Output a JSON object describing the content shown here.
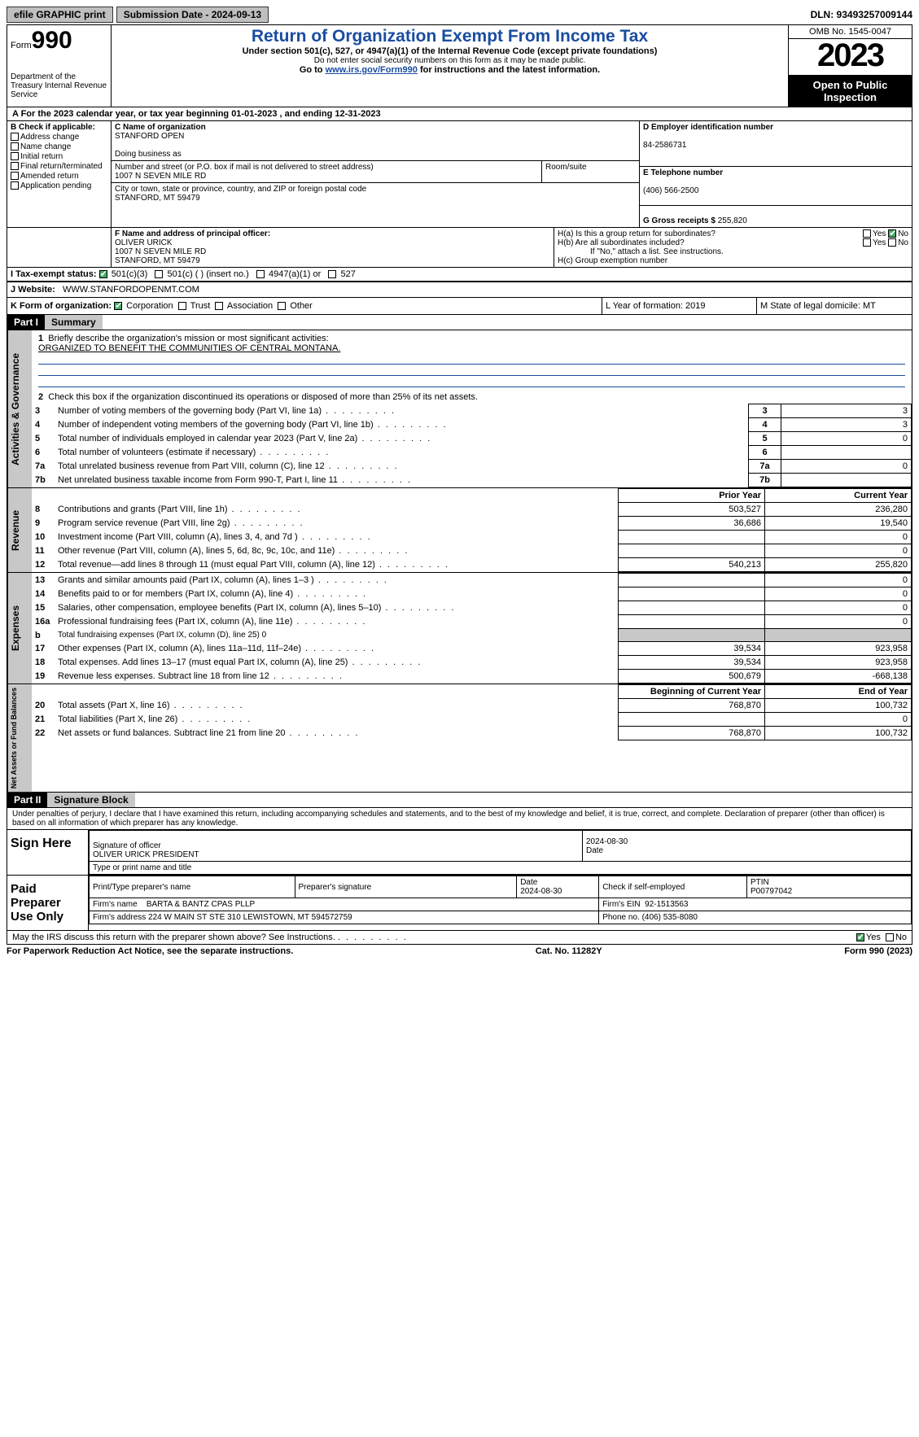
{
  "topbar": {
    "efile": "efile GRAPHIC print",
    "submission": "Submission Date - 2024-09-13",
    "dln": "DLN: 93493257009144"
  },
  "header": {
    "form_word": "Form",
    "form_num": "990",
    "title": "Return of Organization Exempt From Income Tax",
    "subtitle": "Under section 501(c), 527, or 4947(a)(1) of the Internal Revenue Code (except private foundations)",
    "ssn_note": "Do not enter social security numbers on this form as it may be made public.",
    "goto": "Go to ",
    "goto_link": "www.irs.gov/Form990",
    "goto_rest": " for instructions and the latest information.",
    "dept": "Department of the Treasury\nInternal Revenue Service",
    "omb": "OMB No. 1545-0047",
    "year": "2023",
    "open": "Open to Public Inspection"
  },
  "rowA": "A For the 2023 calendar year, or tax year beginning 01-01-2023    , and ending 12-31-2023",
  "boxB": {
    "title": "B Check if applicable:",
    "items": [
      "Address change",
      "Name change",
      "Initial return",
      "Final return/terminated",
      "Amended return",
      "Application pending"
    ]
  },
  "boxC": {
    "label": "C Name of organization",
    "name": "STANFORD OPEN",
    "dba_label": "Doing business as",
    "street_label": "Number and street (or P.O. box if mail is not delivered to street address)",
    "street": "1007 N SEVEN MILE RD",
    "room_label": "Room/suite",
    "city_label": "City or town, state or province, country, and ZIP or foreign postal code",
    "city": "STANFORD, MT  59479"
  },
  "boxD": {
    "label": "D Employer identification number",
    "ein": "84-2586731"
  },
  "boxE": {
    "label": "E Telephone number",
    "phone": "(406) 566-2500"
  },
  "boxG": {
    "label": "G Gross receipts $",
    "amount": "255,820"
  },
  "boxF": {
    "label": "F  Name and address of principal officer:",
    "name": "OLIVER URICK",
    "addr1": "1007 N SEVEN MILE RD",
    "addr2": "STANFORD, MT  59479"
  },
  "boxH": {
    "a": "H(a)  Is this a group return for subordinates?",
    "b": "H(b)  Are all subordinates included?",
    "b_note": "If \"No,\" attach a list. See instructions.",
    "c": "H(c)  Group exemption number"
  },
  "rowI": {
    "label": "I   Tax-exempt status:",
    "opts": [
      "501(c)(3)",
      "501(c) (  ) (insert no.)",
      "4947(a)(1) or",
      "527"
    ]
  },
  "rowJ": {
    "label": "J   Website:",
    "url": "WWW.STANFORDOPENMT.COM"
  },
  "rowK": {
    "label": "K Form of organization:",
    "opts": [
      "Corporation",
      "Trust",
      "Association",
      "Other"
    ]
  },
  "rowL": "L Year of formation: 2019",
  "rowM": "M State of legal domicile: MT",
  "part1": {
    "num": "Part I",
    "title": "Summary",
    "q1": "Briefly describe the organization's mission or most significant activities:",
    "mission": "ORGANIZED TO BENEFIT THE COMMUNITIES OF CENTRAL MONTANA.",
    "q2": "Check this box      if the organization discontinued its operations or disposed of more than 25% of its net assets.",
    "lines_gov": [
      {
        "n": "3",
        "t": "Number of voting members of the governing body (Part VI, line 1a)",
        "v": "3"
      },
      {
        "n": "4",
        "t": "Number of independent voting members of the governing body (Part VI, line 1b)",
        "v": "3"
      },
      {
        "n": "5",
        "t": "Total number of individuals employed in calendar year 2023 (Part V, line 2a)",
        "v": "0"
      },
      {
        "n": "6",
        "t": "Total number of volunteers (estimate if necessary)",
        "v": ""
      },
      {
        "n": "7a",
        "t": "Total unrelated business revenue from Part VIII, column (C), line 12",
        "v": "0"
      },
      {
        "n": "7b",
        "t": "Net unrelated business taxable income from Form 990-T, Part I, line 11",
        "v": ""
      }
    ],
    "col_py": "Prior Year",
    "col_cy": "Current Year",
    "lines_rev": [
      {
        "n": "8",
        "t": "Contributions and grants (Part VIII, line 1h)",
        "py": "503,527",
        "cy": "236,280"
      },
      {
        "n": "9",
        "t": "Program service revenue (Part VIII, line 2g)",
        "py": "36,686",
        "cy": "19,540"
      },
      {
        "n": "10",
        "t": "Investment income (Part VIII, column (A), lines 3, 4, and 7d )",
        "py": "",
        "cy": "0"
      },
      {
        "n": "11",
        "t": "Other revenue (Part VIII, column (A), lines 5, 6d, 8c, 9c, 10c, and 11e)",
        "py": "",
        "cy": "0"
      },
      {
        "n": "12",
        "t": "Total revenue—add lines 8 through 11 (must equal Part VIII, column (A), line 12)",
        "py": "540,213",
        "cy": "255,820"
      }
    ],
    "lines_exp": [
      {
        "n": "13",
        "t": "Grants and similar amounts paid (Part IX, column (A), lines 1–3 )",
        "py": "",
        "cy": "0"
      },
      {
        "n": "14",
        "t": "Benefits paid to or for members (Part IX, column (A), line 4)",
        "py": "",
        "cy": "0"
      },
      {
        "n": "15",
        "t": "Salaries, other compensation, employee benefits (Part IX, column (A), lines 5–10)",
        "py": "",
        "cy": "0"
      },
      {
        "n": "16a",
        "t": "Professional fundraising fees (Part IX, column (A), line 11e)",
        "py": "",
        "cy": "0"
      },
      {
        "n": "b",
        "t": "Total fundraising expenses (Part IX, column (D), line 25) 0",
        "shade": true
      },
      {
        "n": "17",
        "t": "Other expenses (Part IX, column (A), lines 11a–11d, 11f–24e)",
        "py": "39,534",
        "cy": "923,958"
      },
      {
        "n": "18",
        "t": "Total expenses. Add lines 13–17 (must equal Part IX, column (A), line 25)",
        "py": "39,534",
        "cy": "923,958"
      },
      {
        "n": "19",
        "t": "Revenue less expenses. Subtract line 18 from line 12",
        "py": "500,679",
        "cy": "-668,138"
      }
    ],
    "col_bcy": "Beginning of Current Year",
    "col_eoy": "End of Year",
    "lines_na": [
      {
        "n": "20",
        "t": "Total assets (Part X, line 16)",
        "py": "768,870",
        "cy": "100,732"
      },
      {
        "n": "21",
        "t": "Total liabilities (Part X, line 26)",
        "py": "",
        "cy": "0"
      },
      {
        "n": "22",
        "t": "Net assets or fund balances. Subtract line 21 from line 20",
        "py": "768,870",
        "cy": "100,732"
      }
    ]
  },
  "sidebars": {
    "gov": "Activities & Governance",
    "rev": "Revenue",
    "exp": "Expenses",
    "na": "Net Assets or Fund Balances"
  },
  "part2": {
    "num": "Part II",
    "title": "Signature Block",
    "declaration": "Under penalties of perjury, I declare that I have examined this return, including accompanying schedules and statements, and to the best of my knowledge and belief, it is true, correct, and complete. Declaration of preparer (other than officer) is based on all information of which preparer has any knowledge."
  },
  "sign": {
    "left1": "Sign Here",
    "sig_officer": "Signature of officer",
    "officer": "OLIVER URICK PRESIDENT",
    "type_label": "Type or print name and title",
    "date_label": "Date",
    "date": "2024-08-30",
    "left2": "Paid Preparer Use Only",
    "prep_name_label": "Print/Type preparer's name",
    "prep_sig_label": "Preparer's signature",
    "prep_date": "2024-08-30",
    "self_emp": "Check       if self-employed",
    "ptin_label": "PTIN",
    "ptin": "P00797042",
    "firm_name_label": "Firm's name",
    "firm_name": "BARTA & BANTZ CPAS PLLP",
    "firm_ein_label": "Firm's EIN",
    "firm_ein": "92-1513563",
    "firm_addr_label": "Firm's address",
    "firm_addr": "224 W MAIN ST STE 310\nLEWISTOWN, MT  594572759",
    "firm_phone_label": "Phone no.",
    "firm_phone": "(406) 535-8080",
    "discuss": "May the IRS discuss this return with the preparer shown above? See Instructions."
  },
  "footer": {
    "left": "For Paperwork Reduction Act Notice, see the separate instructions.",
    "mid": "Cat. No. 11282Y",
    "right": "Form 990 (2023)"
  }
}
